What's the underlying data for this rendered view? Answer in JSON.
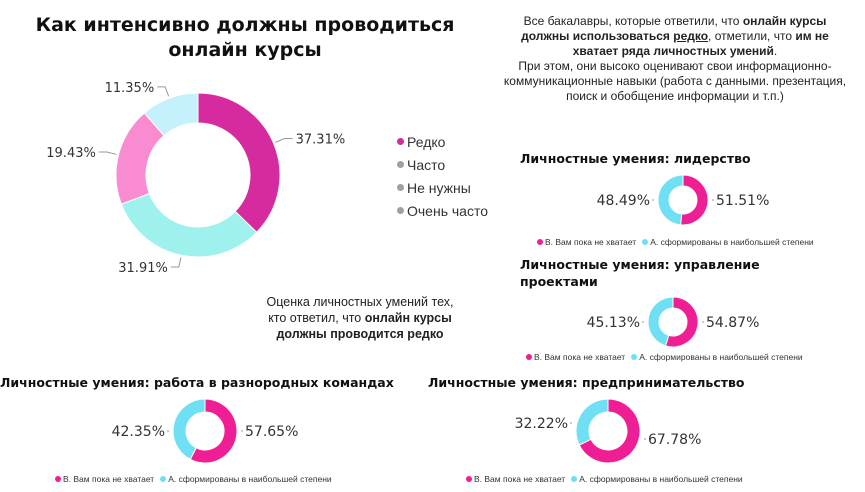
{
  "title": "Как интенсивно должны проводиться онлайн курсы",
  "note_right": {
    "line1_pre": "Все бакалавры, которые ответили, что ",
    "line1_bold": "онлайн курсы",
    "line2_bold_a": "должны использоваться ",
    "line2_underline": "редко",
    "line2_mid": ", отметили, что ",
    "line2_bold_b": "им не",
    "line3_bold": "хватает ряда личностных умений",
    "line3_post": ".",
    "line4": "При этом, они высоко оценивают свои информационно-",
    "line5": "коммуникационные навыки (работа с данными. презентация,",
    "line6": "поиск и обобщение информации и т.п.)"
  },
  "note_main": {
    "line1": "Оценка личностных умений тех,",
    "line2_pre": "кто ответил, что ",
    "line2_bold": "онлайн курсы",
    "line3_bold": "должны проводится редко"
  },
  "colors": {
    "magenta": "#d62b9e",
    "cyan": "#9ff1ee",
    "pink": "#f98bd1",
    "lightblue": "#c4f1fb",
    "hot_pink": "#f01e94",
    "sky": "#6fe0f3",
    "legend_grey": "#a0a0a0"
  },
  "main_legend": [
    {
      "label": "Редко",
      "color": "#d62b9e"
    },
    {
      "label": "Часто",
      "color": "#a0a0a0"
    },
    {
      "label": "Не нужны",
      "color": "#a0a0a0"
    },
    {
      "label": "Очень часто",
      "color": "#a0a0a0"
    }
  ],
  "sub_legend": {
    "a": "В. Вам пока не хватает",
    "b": "А. сформированы в наибольшей степени"
  },
  "chart_data": [
    {
      "type": "pie",
      "title": "Как интенсивно должны проводиться онлайн курсы",
      "categories": [
        "Редко",
        "Часто",
        "Не нужны",
        "Очень часто"
      ],
      "values": [
        37.31,
        31.91,
        19.43,
        11.35
      ],
      "labels": [
        "37.31%",
        "31.91%",
        "19.43%",
        "11.35%"
      ],
      "colors": [
        "#d62b9e",
        "#9ff1ee",
        "#f98bd1",
        "#c4f1fb"
      ],
      "legend": "right"
    },
    {
      "type": "pie",
      "title": "Личностные умения: лидерство",
      "categories": [
        "В. Вам пока не хватает",
        "А. сформированы в наибольшей степени"
      ],
      "values": [
        51.51,
        48.49
      ],
      "labels": [
        "51.51%",
        "48.49%"
      ],
      "colors": [
        "#f01e94",
        "#6fe0f3"
      ],
      "legend": "bottom"
    },
    {
      "type": "pie",
      "title": "Личностные умения: управление проектами",
      "categories": [
        "В. Вам пока не хватает",
        "А. сформированы в наибольшей степени"
      ],
      "values": [
        54.87,
        45.13
      ],
      "labels": [
        "54.87%",
        "45.13%"
      ],
      "colors": [
        "#f01e94",
        "#6fe0f3"
      ],
      "legend": "bottom"
    },
    {
      "type": "pie",
      "title": "Личностные умения: работа в разнородных командах",
      "categories": [
        "В. Вам пока не хватает",
        "А. сформированы в наибольшей степени"
      ],
      "values": [
        57.65,
        42.35
      ],
      "labels": [
        "57.65%",
        "42.35%"
      ],
      "colors": [
        "#f01e94",
        "#6fe0f3"
      ],
      "legend": "bottom"
    },
    {
      "type": "pie",
      "title": "Личностные умения: предпринимательство",
      "categories": [
        "В. Вам пока не хватает",
        "А. сформированы в наибольшей степени"
      ],
      "values": [
        67.78,
        32.22
      ],
      "labels": [
        "67.78%",
        "32.22%"
      ],
      "colors": [
        "#f01e94",
        "#6fe0f3"
      ],
      "legend": "bottom"
    }
  ]
}
